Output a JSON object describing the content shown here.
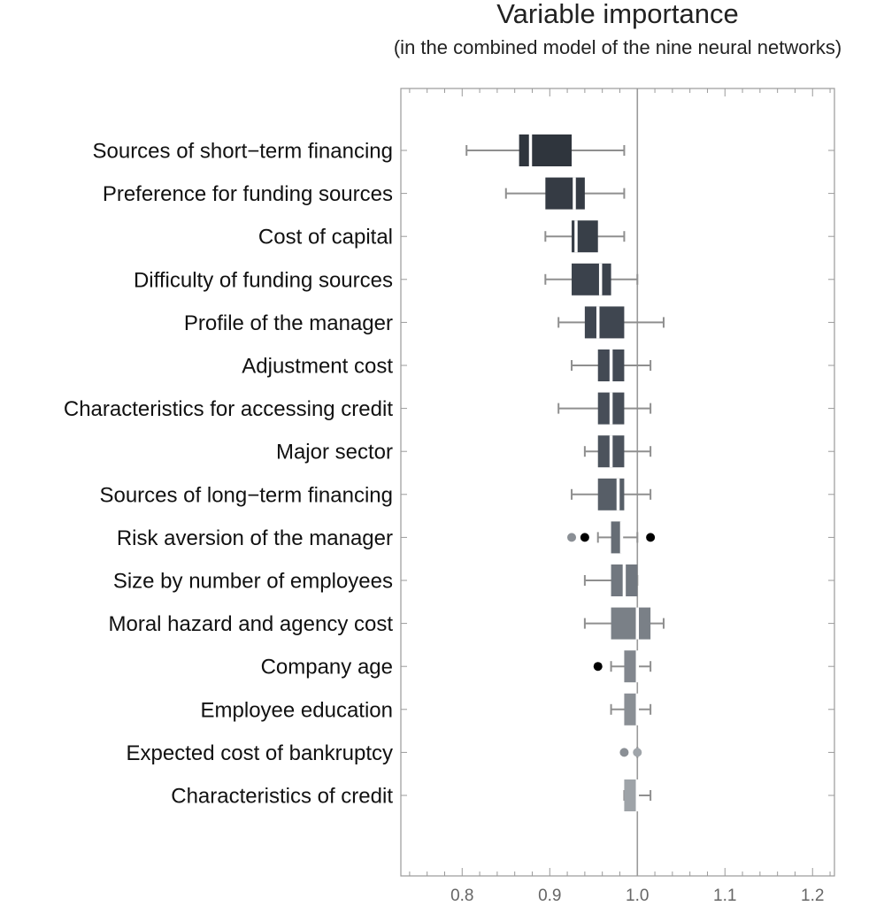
{
  "chart_data": {
    "type": "boxplot",
    "title": "Variable importance",
    "subtitle": "(in the combined model of the nine neural networks)",
    "xlim": [
      0.73,
      1.225
    ],
    "x_ticks": [
      0.8,
      0.9,
      1.0,
      1.1,
      1.2
    ],
    "x_tick_labels": [
      "0.8",
      "0.9",
      "1.0",
      "1.1",
      "1.2"
    ],
    "reference_line": 1.0,
    "grid": false,
    "categories": [
      "Sources of short−term financing",
      "Preference for funding sources",
      "Cost of capital",
      "Difficulty of funding sources",
      "Profile of the manager",
      "Adjustment cost",
      "Characteristics for accessing credit",
      "Major sector",
      "Sources of long−term financing",
      "Risk aversion of the manager",
      "Size by number of employees",
      "Moral hazard and agency cost",
      "Company age",
      "Employee education",
      "Expected cost of bankruptcy",
      "Characteristics of credit"
    ],
    "boxes": [
      {
        "min": 0.805,
        "q1": 0.865,
        "median": 0.878,
        "q3": 0.925,
        "max": 0.985,
        "color": "#2f353d",
        "outliers": []
      },
      {
        "min": 0.85,
        "q1": 0.895,
        "median": 0.928,
        "q3": 0.94,
        "max": 0.985,
        "color": "#353b44",
        "outliers": []
      },
      {
        "min": 0.895,
        "q1": 0.925,
        "median": 0.93,
        "q3": 0.955,
        "max": 0.985,
        "color": "#383f48",
        "outliers": []
      },
      {
        "min": 0.895,
        "q1": 0.925,
        "median": 0.958,
        "q3": 0.97,
        "max": 1.0,
        "color": "#3b424c",
        "outliers": []
      },
      {
        "min": 0.91,
        "q1": 0.94,
        "median": 0.955,
        "q3": 0.985,
        "max": 1.03,
        "color": "#3f4650",
        "outliers": []
      },
      {
        "min": 0.925,
        "q1": 0.955,
        "median": 0.97,
        "q3": 0.985,
        "max": 1.015,
        "color": "#434a54",
        "outliers": []
      },
      {
        "min": 0.91,
        "q1": 0.955,
        "median": 0.97,
        "q3": 0.985,
        "max": 1.015,
        "color": "#474e58",
        "outliers": []
      },
      {
        "min": 0.94,
        "q1": 0.955,
        "median": 0.97,
        "q3": 0.985,
        "max": 1.015,
        "color": "#4c535d",
        "outliers": []
      },
      {
        "min": 0.925,
        "q1": 0.955,
        "median": 0.978,
        "q3": 0.985,
        "max": 1.015,
        "color": "#575e67",
        "outliers": []
      },
      {
        "min": 0.955,
        "q1": 0.97,
        "median": 0.982,
        "q3": 0.982,
        "max": 1.0,
        "color": "#666d75",
        "outliers": [
          {
            "x": 0.925,
            "color": "#8a8f95"
          },
          {
            "x": 0.94,
            "color": "#000000"
          },
          {
            "x": 1.015,
            "color": "#000000"
          }
        ]
      },
      {
        "min": 0.94,
        "q1": 0.97,
        "median": 0.985,
        "q3": 1.0,
        "max": 1.0,
        "color": "#71777f",
        "outliers": []
      },
      {
        "min": 0.94,
        "q1": 0.97,
        "median": 1.0,
        "q3": 1.015,
        "max": 1.03,
        "color": "#7a8087",
        "outliers": []
      },
      {
        "min": 0.97,
        "q1": 0.985,
        "median": 1.0,
        "q3": 1.0,
        "max": 1.015,
        "color": "#82878e",
        "outliers": [
          {
            "x": 0.955,
            "color": "#000000"
          }
        ]
      },
      {
        "min": 0.97,
        "q1": 0.985,
        "median": 1.0,
        "q3": 1.0,
        "max": 1.015,
        "color": "#8a8f95",
        "outliers": []
      },
      {
        "min": 1.0,
        "q1": 1.0,
        "median": 1.0,
        "q3": 1.0,
        "max": 1.0,
        "color": "#93989e",
        "outliers": [
          {
            "x": 0.985,
            "color": "#8a8f95"
          },
          {
            "x": 1.0,
            "color": "#a0a5aa"
          }
        ]
      },
      {
        "min": 0.985,
        "q1": 0.985,
        "median": 1.0,
        "q3": 1.0,
        "max": 1.015,
        "color": "#9ea3a8",
        "outliers": []
      }
    ]
  }
}
